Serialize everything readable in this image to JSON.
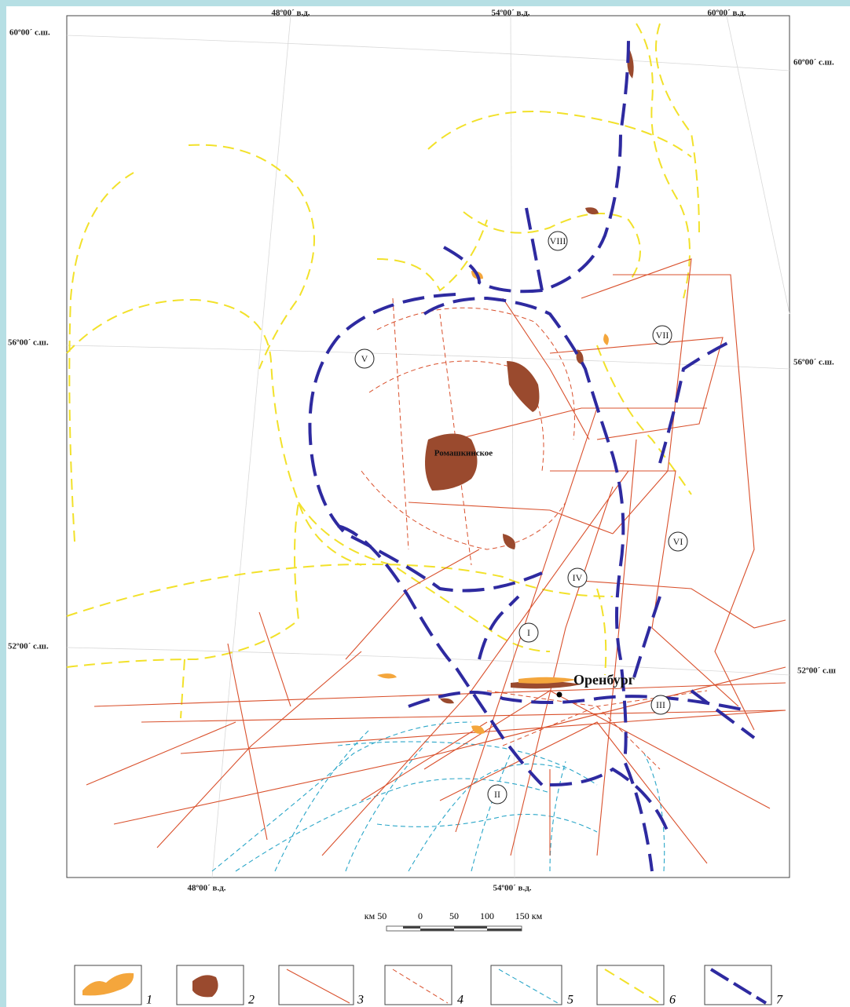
{
  "coordinates": {
    "top": [
      "48º00´ в.д.",
      "54º00´ в.д.",
      "60º00´ в.д."
    ],
    "left": [
      "60º00´ с.ш.",
      "56º00´ с.ш.",
      "52º00´ с.ш."
    ],
    "right": [
      "60º00´ с.ш.",
      "56º00´ с.ш.",
      "52º00´ с.ш"
    ],
    "bottom": [
      "48º00´ в.д.",
      "54º00´ в.д."
    ]
  },
  "regions": [
    "VIII",
    "VII",
    "V",
    "VI",
    "IV",
    "I",
    "III",
    "II"
  ],
  "places": [
    "Ромашкинское",
    "Оренбург"
  ],
  "scale": [
    "км 50",
    "0",
    "50",
    "100",
    "150 км"
  ],
  "legend": [
    "1",
    "2",
    "3",
    "4",
    "5",
    "6",
    "7"
  ]
}
